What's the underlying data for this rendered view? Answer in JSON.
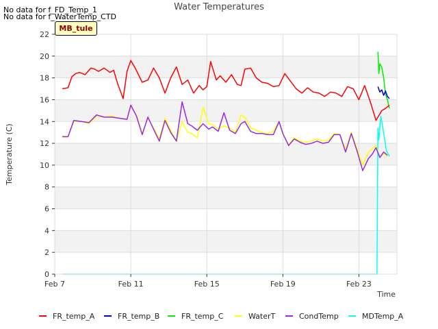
{
  "notes": [
    "No data for f_FD_Temp_1",
    "No data for f_WaterTemp_CTD"
  ],
  "badge": "MB_tule",
  "chart_data": {
    "type": "line",
    "title": "Water Temperatures",
    "xlabel": "Time",
    "ylabel": "Temperature (C)",
    "x_ticks": [
      "Feb 7",
      "Feb 11",
      "Feb 15",
      "Feb 19",
      "Feb 23"
    ],
    "x_tick_days": [
      7,
      11,
      15,
      19,
      23
    ],
    "xlim_days": [
      7,
      25.0
    ],
    "ylim": [
      0,
      22
    ],
    "y_ticks": [
      0,
      2,
      4,
      6,
      8,
      10,
      12,
      14,
      16,
      18,
      20,
      22
    ],
    "grid": true,
    "banded_background": true,
    "legend_position": "bottom",
    "series": [
      {
        "name": "FR_temp_A",
        "color": "#ff0000",
        "x": [
          7.4,
          7.7,
          7.9,
          8.1,
          8.3,
          8.6,
          8.9,
          9.1,
          9.3,
          9.6,
          9.9,
          10.1,
          10.3,
          10.6,
          10.8,
          11.0,
          11.2,
          11.6,
          11.9,
          12.2,
          12.5,
          12.8,
          13.1,
          13.4,
          13.7,
          14.0,
          14.3,
          14.6,
          14.8,
          15.0,
          15.2,
          15.5,
          15.7,
          16.0,
          16.3,
          16.6,
          16.8,
          17.0,
          17.3,
          17.6,
          17.9,
          18.2,
          18.5,
          18.8,
          19.1,
          19.4,
          19.7,
          20.0,
          20.3,
          20.6,
          20.9,
          21.2,
          21.5,
          21.8,
          22.1,
          22.4,
          22.7,
          23.0,
          23.3,
          23.6,
          23.9,
          24.2,
          24.4,
          24.6
        ],
        "y": [
          17.0,
          17.1,
          18.1,
          18.4,
          18.5,
          18.3,
          18.9,
          18.8,
          18.6,
          18.9,
          18.5,
          18.7,
          17.5,
          16.1,
          18.6,
          19.6,
          19.0,
          17.6,
          17.8,
          18.9,
          18.0,
          16.6,
          18.0,
          19.0,
          17.4,
          17.8,
          16.6,
          17.3,
          16.9,
          17.2,
          19.5,
          17.8,
          18.2,
          17.6,
          18.3,
          17.4,
          17.3,
          18.8,
          18.9,
          18.0,
          17.6,
          17.5,
          17.2,
          17.3,
          18.4,
          17.7,
          17.0,
          16.6,
          17.1,
          16.7,
          16.6,
          16.3,
          16.7,
          16.6,
          16.3,
          17.2,
          17.0,
          16.0,
          17.3,
          15.8,
          14.1,
          15.0,
          15.2,
          15.5
        ]
      },
      {
        "name": "FR_temp_B",
        "color": "#0000cc",
        "x": [
          24.0,
          24.1,
          24.2,
          24.3,
          24.4,
          24.5,
          24.6
        ],
        "y": [
          17.2,
          16.7,
          16.9,
          16.4,
          16.8,
          16.3,
          16.1
        ]
      },
      {
        "name": "FR_temp_C",
        "color": "#00ee00",
        "x": [
          24.0,
          24.05,
          24.1,
          24.2,
          24.3,
          24.4,
          24.5,
          24.6
        ],
        "y": [
          20.4,
          18.4,
          19.3,
          19.0,
          18.0,
          16.5,
          16.0,
          15.2
        ]
      },
      {
        "name": "WaterT",
        "color": "#ffff00",
        "x": [
          7.4,
          7.7,
          8.0,
          8.4,
          8.8,
          9.2,
          9.6,
          10.0,
          10.4,
          10.8,
          11.0,
          11.3,
          11.6,
          11.9,
          12.2,
          12.5,
          12.8,
          13.1,
          13.4,
          13.7,
          14.0,
          14.2,
          14.5,
          14.8,
          15.1,
          15.3,
          15.6,
          15.9,
          16.2,
          16.5,
          16.8,
          17.0,
          17.3,
          17.6,
          17.9,
          18.2,
          18.5,
          18.8,
          19.0,
          19.3,
          19.6,
          19.9,
          20.2,
          20.5,
          20.8,
          21.1,
          21.4,
          21.7,
          22.0,
          22.3,
          22.6,
          22.9,
          23.2,
          23.5,
          23.7,
          23.9,
          24.1,
          24.3,
          24.5
        ],
        "y": [
          12.7,
          12.6,
          14.0,
          14.0,
          13.8,
          14.5,
          14.4,
          14.5,
          14.3,
          14.2,
          15.4,
          14.6,
          12.9,
          14.3,
          13.4,
          12.4,
          14.3,
          13.2,
          12.2,
          14.0,
          13.0,
          12.9,
          12.5,
          15.3,
          13.8,
          13.7,
          13.3,
          13.6,
          13.4,
          13.0,
          14.6,
          14.4,
          13.4,
          13.2,
          13.0,
          12.9,
          13.1,
          14.0,
          12.8,
          11.9,
          12.5,
          12.2,
          12.1,
          12.2,
          12.4,
          12.2,
          12.3,
          12.9,
          12.8,
          11.4,
          13.0,
          11.5,
          10.0,
          11.2,
          11.5,
          11.8,
          10.7,
          11.1,
          10.8
        ]
      },
      {
        "name": "CondTemp",
        "color": "#9a26e8",
        "x": [
          7.4,
          7.7,
          8.0,
          8.4,
          8.8,
          9.2,
          9.6,
          10.0,
          10.4,
          10.8,
          11.0,
          11.3,
          11.6,
          11.9,
          12.2,
          12.5,
          12.8,
          13.1,
          13.4,
          13.7,
          14.0,
          14.2,
          14.5,
          14.8,
          15.1,
          15.3,
          15.6,
          15.9,
          16.2,
          16.5,
          16.8,
          17.0,
          17.3,
          17.6,
          17.9,
          18.2,
          18.5,
          18.8,
          19.0,
          19.3,
          19.6,
          19.9,
          20.2,
          20.5,
          20.8,
          21.1,
          21.4,
          21.7,
          22.0,
          22.3,
          22.6,
          22.9,
          23.2,
          23.5,
          23.7,
          23.9,
          24.1,
          24.3,
          24.5
        ],
        "y": [
          12.6,
          12.6,
          14.1,
          14.0,
          13.9,
          14.6,
          14.4,
          14.4,
          14.3,
          14.2,
          15.5,
          14.5,
          12.8,
          14.4,
          13.3,
          12.2,
          14.1,
          13.0,
          12.2,
          15.8,
          13.8,
          13.6,
          13.2,
          13.8,
          13.3,
          13.5,
          13.1,
          14.8,
          13.2,
          12.9,
          13.8,
          14.0,
          13.1,
          12.9,
          12.9,
          12.8,
          12.8,
          14.0,
          12.9,
          11.8,
          12.4,
          12.1,
          11.9,
          12.0,
          12.2,
          12.0,
          12.1,
          12.8,
          12.8,
          11.2,
          12.9,
          11.3,
          9.5,
          10.6,
          11.0,
          11.6,
          10.7,
          11.2,
          10.9
        ]
      },
      {
        "name": "MDTemp_A",
        "color": "#00ffff",
        "x": [
          7.4,
          23.95,
          24.0,
          24.05,
          24.15,
          24.25,
          24.35,
          24.45,
          24.55,
          24.6
        ],
        "y": [
          0.0,
          0.0,
          13.4,
          12.3,
          14.5,
          13.5,
          12.4,
          11.3,
          11.0,
          10.8
        ]
      }
    ]
  }
}
